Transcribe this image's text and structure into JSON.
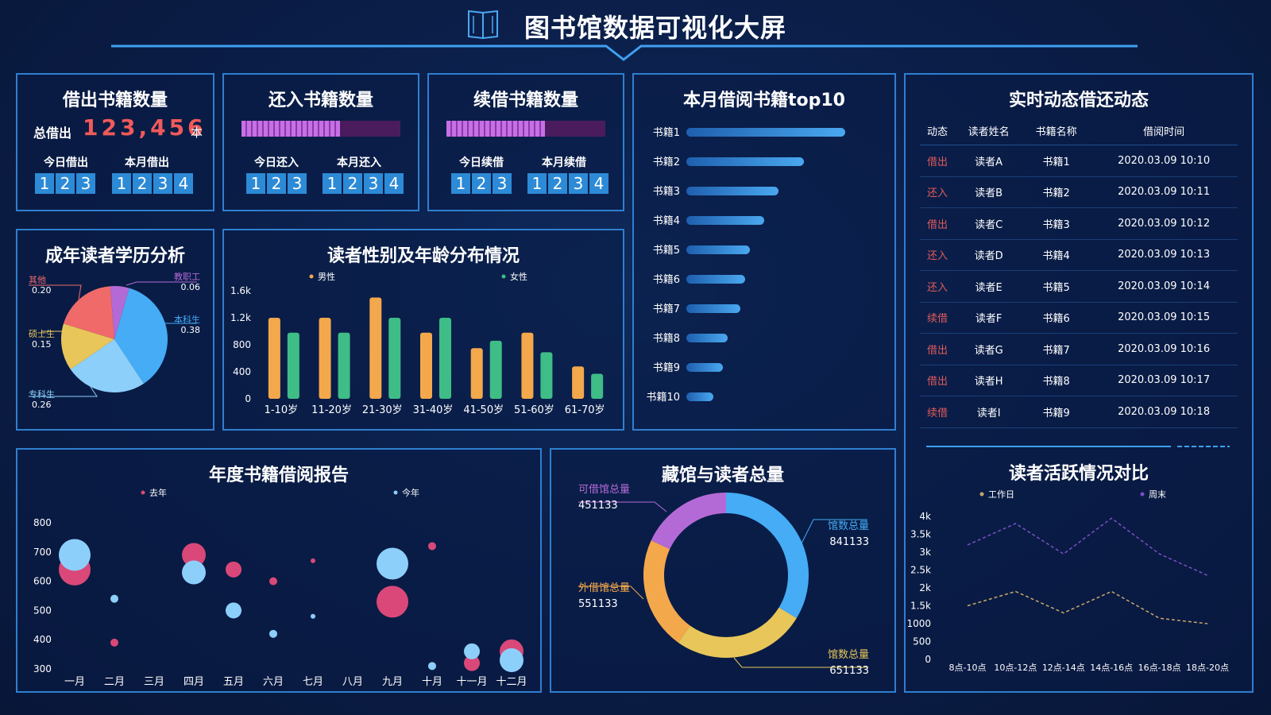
{
  "header": {
    "title": "图书馆数据可视化大屏",
    "icon": "open-book-icon"
  },
  "borrow_out": {
    "title": "借出书籍数量",
    "total_label": "总借出",
    "total_value": "123,456",
    "total_unit": "本",
    "today_label": "今日借出",
    "today_digits": [
      "1",
      "2",
      "3"
    ],
    "month_label": "本月借出",
    "month_digits": [
      "1",
      "2",
      "3",
      "4"
    ]
  },
  "return_in": {
    "title": "还入书籍数量",
    "progress": 0.62,
    "today_label": "今日还入",
    "today_digits": [
      "1",
      "2",
      "3"
    ],
    "month_label": "本月还入",
    "month_digits": [
      "1",
      "2",
      "3",
      "4"
    ]
  },
  "renew": {
    "title": "续借书籍数量",
    "progress": 0.62,
    "today_label": "今日续借",
    "today_digits": [
      "1",
      "2",
      "3"
    ],
    "month_label": "本月续借",
    "month_digits": [
      "1",
      "2",
      "3",
      "4"
    ]
  },
  "live": {
    "title": "实时动态借还动态",
    "columns": [
      "动态",
      "读者姓名",
      "书籍名称",
      "借阅时间"
    ],
    "rows": [
      [
        "借出",
        "读者A",
        "书籍1",
        "2020.03.09 10:10"
      ],
      [
        "还入",
        "读者B",
        "书籍2",
        "2020.03.09 10:11"
      ],
      [
        "借出",
        "读者C",
        "书籍3",
        "2020.03.09 10:12"
      ],
      [
        "还入",
        "读者D",
        "书籍4",
        "2020.03.09 10:13"
      ],
      [
        "还入",
        "读者E",
        "书籍5",
        "2020.03.09 10:14"
      ],
      [
        "续借",
        "读者F",
        "书籍6",
        "2020.03.09 10:15"
      ],
      [
        "借出",
        "读者G",
        "书籍7",
        "2020.03.09 10:16"
      ],
      [
        "借出",
        "读者H",
        "书籍8",
        "2020.03.09 10:17"
      ],
      [
        "续借",
        "读者I",
        "书籍9",
        "2020.03.09 10:18"
      ]
    ]
  },
  "chart_data": [
    {
      "id": "top10",
      "type": "bar",
      "title": "本月借阅书籍top10",
      "orientation": "horizontal",
      "categories": [
        "书籍1",
        "书籍2",
        "书籍3",
        "书籍4",
        "书籍5",
        "书籍6",
        "书籍7",
        "书籍8",
        "书籍9",
        "书籍10"
      ],
      "values": [
        100,
        74,
        58,
        49,
        40,
        37,
        34,
        26,
        23,
        17
      ],
      "colors": [
        "#1e5fae",
        "#4aa8f0"
      ]
    },
    {
      "id": "edu",
      "type": "pie",
      "title": "成年读者学历分析",
      "slices": [
        {
          "name": "本科生",
          "value": 0.38,
          "color": "#45acf5"
        },
        {
          "name": "专科生",
          "value": 0.26,
          "color": "#8dcffb"
        },
        {
          "name": "硕士生",
          "value": 0.15,
          "color": "#e8c65a"
        },
        {
          "name": "其他",
          "value": 0.2,
          "color": "#f06a6a"
        },
        {
          "name": "教职工",
          "value": 0.06,
          "color": "#b46ad6"
        }
      ]
    },
    {
      "id": "gender_age",
      "type": "bar",
      "title": "读者性别及年龄分布情况",
      "categories": [
        "1-10岁",
        "11-20岁",
        "21-30岁",
        "31-40岁",
        "41-50岁",
        "51-60岁",
        "61-70岁"
      ],
      "series": [
        {
          "name": "男性",
          "values": [
            1200,
            1200,
            1500,
            980,
            750,
            980,
            480
          ],
          "color": "#f4a84c"
        },
        {
          "name": "女性",
          "values": [
            980,
            980,
            1200,
            1200,
            860,
            690,
            370
          ],
          "color": "#3ebd86"
        }
      ],
      "ylim": [
        0,
        1600
      ],
      "yticks": [
        "0",
        "400",
        "800",
        "1.2k",
        "1.6k"
      ],
      "ytick_values": [
        0,
        400,
        800,
        1200,
        1600
      ]
    },
    {
      "id": "annual",
      "type": "scatter",
      "title": "年度书籍借阅报告",
      "categories": [
        "一月",
        "二月",
        "三月",
        "四月",
        "五月",
        "六月",
        "七月",
        "八月",
        "九月",
        "十月",
        "十一月",
        "十二月"
      ],
      "series": [
        {
          "name": "去年",
          "color": "#d94878",
          "points": [
            {
              "x": "一月",
              "y": 640,
              "size": 20
            },
            {
              "x": "二月",
              "y": 390,
              "size": 5
            },
            {
              "x": "四月",
              "y": 690,
              "size": 15
            },
            {
              "x": "五月",
              "y": 640,
              "size": 10
            },
            {
              "x": "六月",
              "y": 600,
              "size": 5
            },
            {
              "x": "七月",
              "y": 670,
              "size": 3
            },
            {
              "x": "九月",
              "y": 530,
              "size": 20
            },
            {
              "x": "十月",
              "y": 720,
              "size": 5
            },
            {
              "x": "十一月",
              "y": 320,
              "size": 10
            },
            {
              "x": "十二月",
              "y": 360,
              "size": 15
            }
          ]
        },
        {
          "name": "今年",
          "color": "#8dcffb",
          "points": [
            {
              "x": "一月",
              "y": 690,
              "size": 20
            },
            {
              "x": "二月",
              "y": 540,
              "size": 5
            },
            {
              "x": "四月",
              "y": 630,
              "size": 15
            },
            {
              "x": "五月",
              "y": 500,
              "size": 10
            },
            {
              "x": "六月",
              "y": 420,
              "size": 5
            },
            {
              "x": "七月",
              "y": 480,
              "size": 3
            },
            {
              "x": "九月",
              "y": 660,
              "size": 20
            },
            {
              "x": "十月",
              "y": 310,
              "size": 5
            },
            {
              "x": "十一月",
              "y": 360,
              "size": 10
            },
            {
              "x": "十二月",
              "y": 330,
              "size": 15
            }
          ]
        }
      ],
      "ylim": [
        300,
        800
      ],
      "yticks": [
        "300",
        "400",
        "500",
        "600",
        "700",
        "800"
      ],
      "ytick_values": [
        300,
        400,
        500,
        600,
        700,
        800
      ]
    },
    {
      "id": "collection",
      "type": "pie",
      "subtype": "donut",
      "title": "藏馆与读者总量",
      "slices": [
        {
          "name": "馆数总量",
          "value": 841133,
          "label": "841133",
          "color": "#45acf5",
          "side": "right",
          "vpos": "upper"
        },
        {
          "name": "馆数总量",
          "value": 651133,
          "label": "651133",
          "color": "#e8c65a",
          "side": "right",
          "vpos": "lower"
        },
        {
          "name": "外借馆总量",
          "value": 551133,
          "label": "551133",
          "color": "#f4a84c",
          "side": "left",
          "vpos": "lower"
        },
        {
          "name": "可借馆总量",
          "value": 451133,
          "label": "451133",
          "color": "#b46ad6",
          "side": "left",
          "vpos": "upper"
        }
      ]
    },
    {
      "id": "activity",
      "type": "line",
      "title": "读者活跃情况对比",
      "categories": [
        "8点-10点",
        "10点-12点",
        "12点-14点",
        "14点-16点",
        "16点-18点",
        "18点-20点"
      ],
      "series": [
        {
          "name": "工作日",
          "values": [
            1500,
            1900,
            1300,
            1900,
            1150,
            1000
          ],
          "color": "#c9a86a"
        },
        {
          "name": "周末",
          "values": [
            3200,
            3800,
            2950,
            3950,
            2950,
            2350
          ],
          "color": "#7b4fc9"
        }
      ],
      "ylim": [
        0,
        4000
      ],
      "yticks": [
        "0",
        "500",
        "1000",
        "1.5k",
        "2k",
        "2.5k",
        "3k",
        "3.5k",
        "4k"
      ],
      "ytick_values": [
        0,
        500,
        1000,
        1500,
        2000,
        2500,
        3000,
        3500,
        4000
      ]
    }
  ]
}
